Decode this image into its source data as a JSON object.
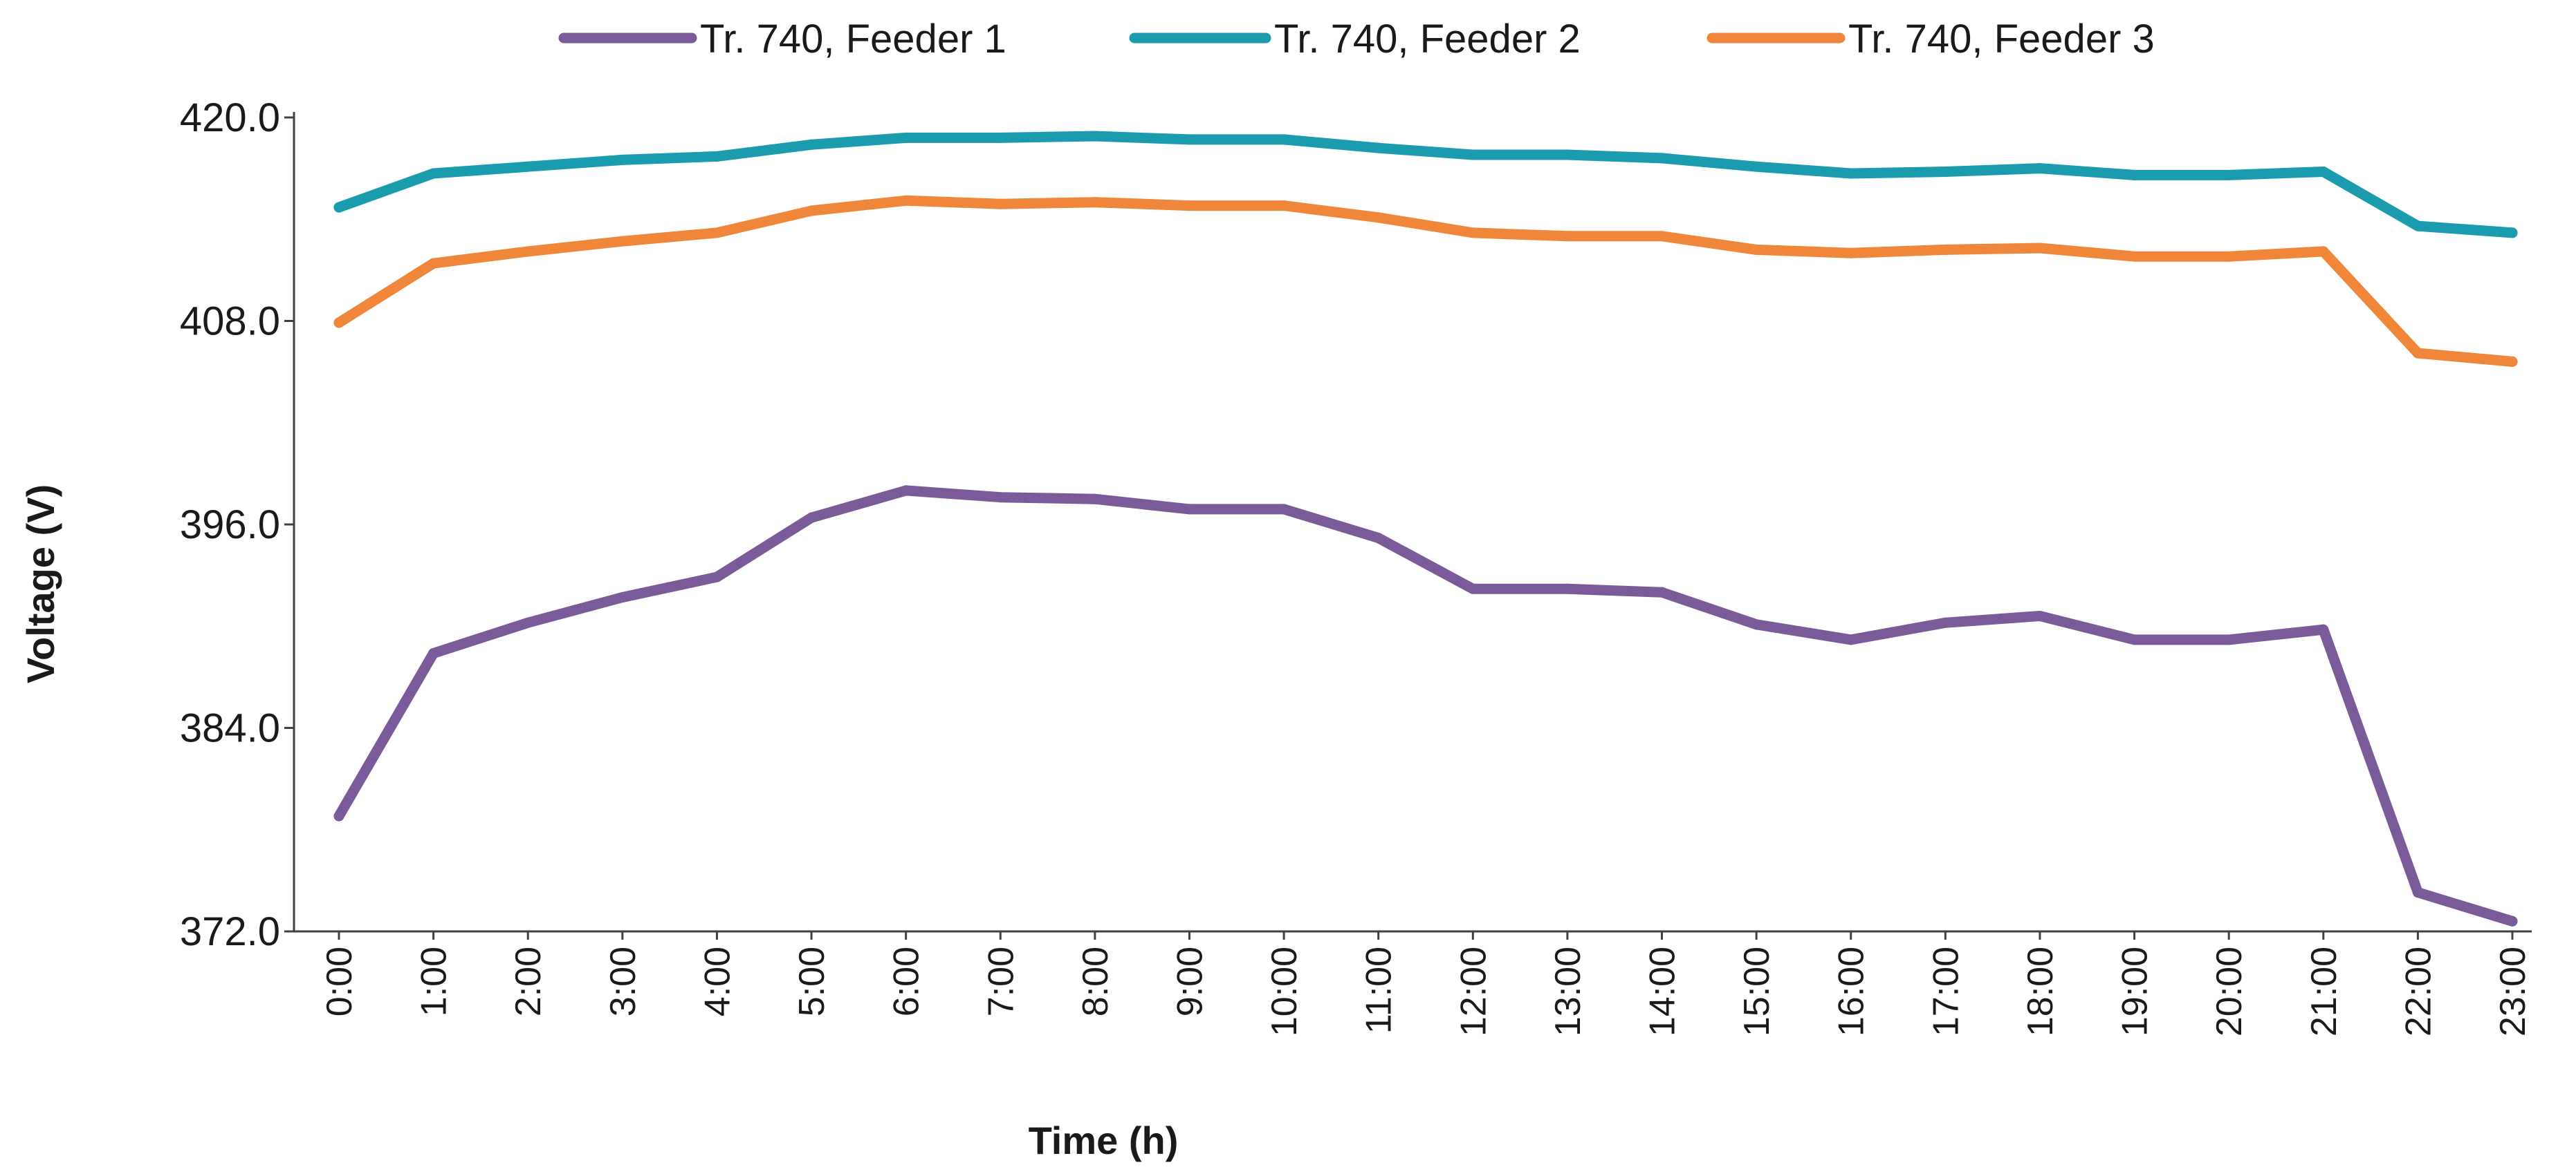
{
  "chart_data": {
    "type": "line",
    "title": "",
    "xlabel": "Time (h)",
    "ylabel": "Voltage (V)",
    "ylim": [
      372.0,
      420.0
    ],
    "yticks": [
      "372.0",
      "384.0",
      "396.0",
      "408.0",
      "420.0"
    ],
    "ytick_values": [
      372.0,
      384.0,
      396.0,
      408.0,
      420.0
    ],
    "grid": false,
    "legend_position": "top",
    "categories": [
      "0:00",
      "1:00",
      "2:00",
      "3:00",
      "4:00",
      "5:00",
      "6:00",
      "7:00",
      "8:00",
      "9:00",
      "10:00",
      "11:00",
      "12:00",
      "13:00",
      "14:00",
      "15:00",
      "16:00",
      "17:00",
      "18:00",
      "19:00",
      "20:00",
      "21:00",
      "22:00",
      "23:00"
    ],
    "series": [
      {
        "name": "Tr. 740, Feeder 1",
        "color": "#7b5a99",
        "values": [
          378.8,
          388.4,
          390.2,
          391.7,
          392.9,
          396.4,
          398.0,
          397.6,
          397.5,
          396.9,
          396.9,
          395.2,
          392.2,
          392.2,
          392.0,
          390.1,
          389.2,
          390.2,
          390.6,
          389.2,
          389.2,
          389.8,
          374.3,
          372.6
        ]
      },
      {
        "name": "Tr. 740, Feeder 2",
        "color": "#1b9bae",
        "values": [
          414.7,
          416.7,
          417.1,
          417.5,
          417.7,
          418.4,
          418.8,
          418.8,
          418.9,
          418.7,
          418.7,
          418.2,
          417.8,
          417.8,
          417.6,
          417.1,
          416.7,
          416.8,
          417.0,
          416.6,
          416.6,
          416.8,
          413.6,
          413.2
        ]
      },
      {
        "name": "Tr. 740, Feeder 3",
        "color": "#ef8639",
        "values": [
          407.9,
          411.4,
          412.1,
          412.7,
          413.2,
          414.5,
          415.1,
          414.9,
          415.0,
          414.8,
          414.8,
          414.1,
          413.2,
          413.0,
          413.0,
          412.2,
          412.0,
          412.2,
          412.3,
          411.8,
          411.8,
          412.1,
          406.1,
          405.6
        ]
      }
    ]
  }
}
